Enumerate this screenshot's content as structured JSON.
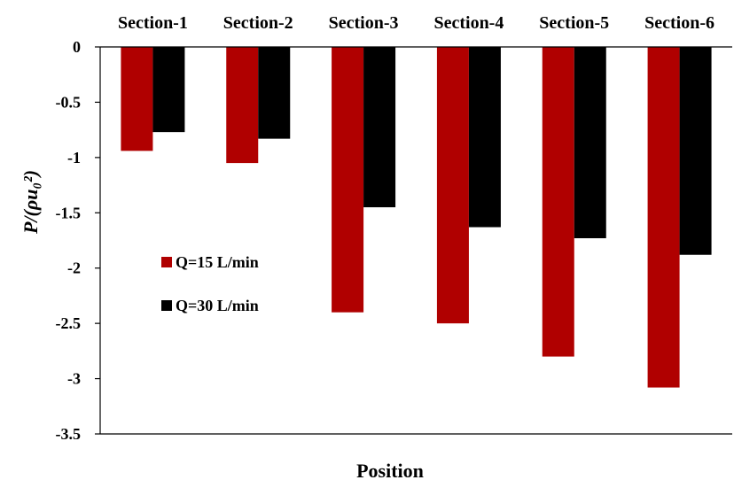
{
  "chart_data": {
    "type": "bar",
    "categories": [
      "Section-1",
      "Section-2",
      "Section-3",
      "Section-4",
      "Section-5",
      "Section-6"
    ],
    "series": [
      {
        "name": "Q=15 L/min",
        "color": "#b00000",
        "values": [
          -0.94,
          -1.05,
          -2.4,
          -2.5,
          -2.8,
          -3.08
        ]
      },
      {
        "name": "Q=30 L/min",
        "color": "#000000",
        "values": [
          -0.77,
          -0.83,
          -1.45,
          -1.63,
          -1.73,
          -1.88
        ]
      }
    ],
    "ylabel": "P/(ρu₀²)",
    "xlabel": "Position",
    "ylim": [
      -3.5,
      0
    ],
    "yticks": [
      "0",
      "-0.5",
      "-1",
      "-1.5",
      "-2",
      "-2.5",
      "-3",
      "-3.5"
    ],
    "ytick_values": [
      0,
      -0.5,
      -1,
      -1.5,
      -2,
      -2.5,
      -3,
      -3.5
    ],
    "category_axis_position": "top",
    "legend_position": "left-middle",
    "grid": false
  }
}
